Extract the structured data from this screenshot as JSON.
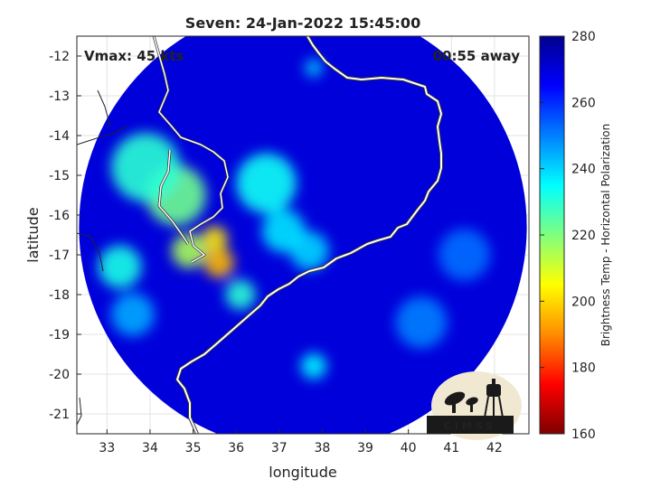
{
  "chart_data": {
    "type": "heatmap",
    "title": "Seven: 24-Jan-2022 15:45:00",
    "xlabel": "longitude",
    "ylabel": "latitude",
    "xlim": [
      32.3,
      42.8
    ],
    "ylim": [
      -21.5,
      -11.5
    ],
    "xticks": [
      33,
      34,
      35,
      36,
      37,
      38,
      39,
      40,
      41,
      42
    ],
    "yticks": [
      -12,
      -13,
      -14,
      -15,
      -16,
      -17,
      -18,
      -19,
      -20,
      -21
    ],
    "grid": true,
    "annotations": {
      "left": "Vmax: 45 kts",
      "right": "00:55 away"
    },
    "colorbar": {
      "label": "Brightness Temp - Horizontal Polarization",
      "range": [
        160,
        280
      ],
      "ticks": [
        160,
        180,
        200,
        220,
        240,
        260,
        280
      ],
      "colormap": [
        "#7f0000",
        "#ff0000",
        "#ff8c00",
        "#ffff00",
        "#7fff7f",
        "#00ffff",
        "#0080ff",
        "#0000ff",
        "#00008f"
      ]
    },
    "swath": {
      "center": [
        37.55,
        -16.3
      ],
      "radius_deg": 5.2
    },
    "background_value": 270,
    "features": [
      {
        "lon": 34.6,
        "lat": -15.5,
        "value": 222,
        "spread": 0.7
      },
      {
        "lon": 33.9,
        "lat": -14.8,
        "value": 230,
        "spread": 0.8
      },
      {
        "lon": 35.6,
        "lat": -17.2,
        "value": 196,
        "spread": 0.35
      },
      {
        "lon": 35.5,
        "lat": -16.6,
        "value": 202,
        "spread": 0.3
      },
      {
        "lon": 34.9,
        "lat": -16.9,
        "value": 215,
        "spread": 0.4
      },
      {
        "lon": 33.3,
        "lat": -17.3,
        "value": 232,
        "spread": 0.5
      },
      {
        "lon": 36.7,
        "lat": -15.2,
        "value": 234,
        "spread": 0.7
      },
      {
        "lon": 37.7,
        "lat": -16.9,
        "value": 240,
        "spread": 0.45
      },
      {
        "lon": 37.1,
        "lat": -16.4,
        "value": 238,
        "spread": 0.5
      },
      {
        "lon": 36.1,
        "lat": -18.0,
        "value": 230,
        "spread": 0.35
      },
      {
        "lon": 37.8,
        "lat": -19.8,
        "value": 236,
        "spread": 0.3
      },
      {
        "lon": 33.6,
        "lat": -18.5,
        "value": 245,
        "spread": 0.5
      },
      {
        "lon": 40.3,
        "lat": -18.7,
        "value": 250,
        "spread": 0.6
      },
      {
        "lon": 41.3,
        "lat": -17.0,
        "value": 252,
        "spread": 0.6
      },
      {
        "lon": 37.8,
        "lat": -12.3,
        "value": 240,
        "spread": 0.2
      }
    ]
  },
  "logo": {
    "text": "CIMSS"
  }
}
